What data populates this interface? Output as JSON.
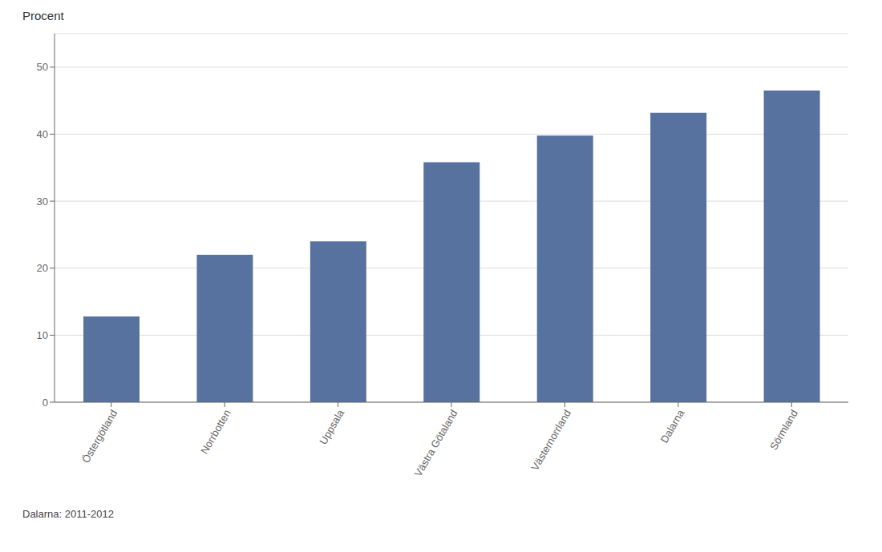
{
  "chart_data": {
    "type": "bar",
    "categories": [
      "Östergötland",
      "Norrbotten",
      "Uppsala",
      "Västra Götaland",
      "Västernorrland",
      "Dalarna",
      "Sörmland"
    ],
    "values": [
      12.8,
      22.0,
      24.0,
      35.8,
      39.8,
      43.2,
      46.5
    ],
    "color": "#5872a0",
    "ylabel": "Procent",
    "footnote": "Dalarna: 2011-2012",
    "ylim": [
      0,
      55
    ],
    "yticks": [
      0,
      10,
      20,
      30,
      40,
      50
    ],
    "grid": true
  }
}
